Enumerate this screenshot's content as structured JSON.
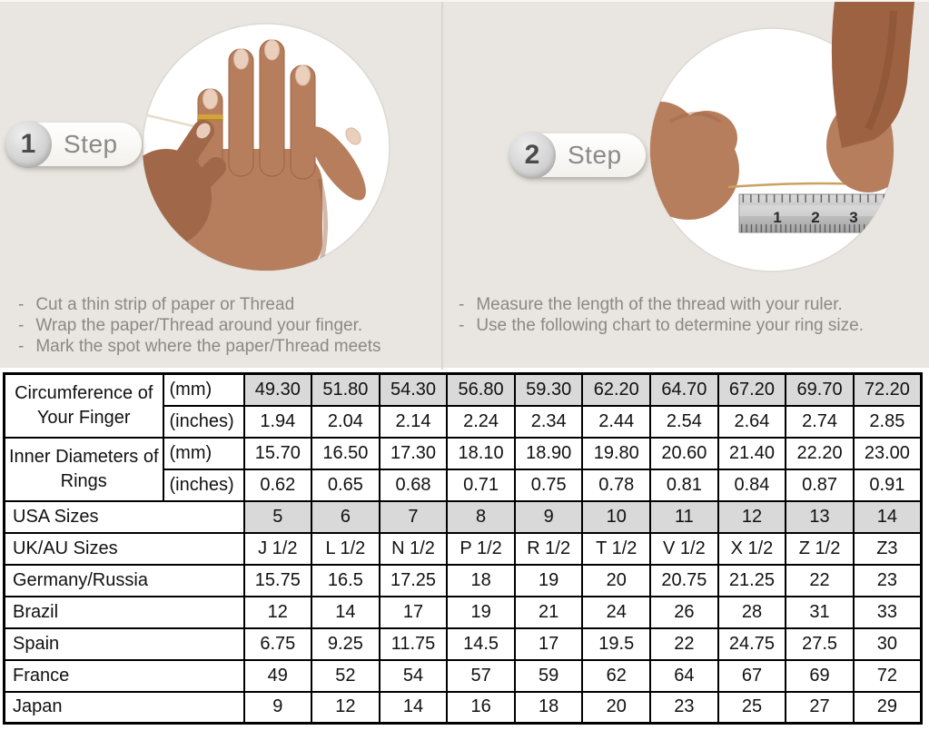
{
  "steps": [
    {
      "number": "1",
      "label": "Step",
      "instructions": [
        "Cut a thin strip of paper or Thread",
        "Wrap the paper/Thread around your finger.",
        "Mark the spot where the paper/Thread meets"
      ]
    },
    {
      "number": "2",
      "label": "Step",
      "instructions": [
        "Measure the length of the thread with your ruler.",
        "Use the following chart to determine your ring size."
      ]
    }
  ],
  "ruler": {
    "numbers": [
      "1",
      "2",
      "3"
    ]
  },
  "size_chart": {
    "measure_groups": [
      {
        "label": "Circumference of Your Finger",
        "rows": [
          {
            "unit": "(mm)",
            "shaded": true,
            "values": [
              "49.30",
              "51.80",
              "54.30",
              "56.80",
              "59.30",
              "62.20",
              "64.70",
              "67.20",
              "69.70",
              "72.20"
            ]
          },
          {
            "unit": "(inches)",
            "shaded": false,
            "values": [
              "1.94",
              "2.04",
              "2.14",
              "2.24",
              "2.34",
              "2.44",
              "2.54",
              "2.64",
              "2.74",
              "2.85"
            ]
          }
        ]
      },
      {
        "label": "Inner Diameters of Rings",
        "rows": [
          {
            "unit": "(mm)",
            "shaded": false,
            "values": [
              "15.70",
              "16.50",
              "17.30",
              "18.10",
              "18.90",
              "19.80",
              "20.60",
              "21.40",
              "22.20",
              "23.00"
            ]
          },
          {
            "unit": "(inches)",
            "shaded": false,
            "values": [
              "0.62",
              "0.65",
              "0.68",
              "0.71",
              "0.75",
              "0.78",
              "0.81",
              "0.84",
              "0.87",
              "0.91"
            ]
          }
        ]
      }
    ],
    "size_rows": [
      {
        "label": "USA Sizes",
        "shaded": true,
        "values": [
          "5",
          "6",
          "7",
          "8",
          "9",
          "10",
          "11",
          "12",
          "13",
          "14"
        ]
      },
      {
        "label": "UK/AU Sizes",
        "shaded": false,
        "values": [
          "J 1/2",
          "L 1/2",
          "N 1/2",
          "P 1/2",
          "R 1/2",
          "T 1/2",
          "V 1/2",
          "X 1/2",
          "Z 1/2",
          "Z3"
        ]
      },
      {
        "label": "Germany/Russia",
        "shaded": false,
        "values": [
          "15.75",
          "16.5",
          "17.25",
          "18",
          "19",
          "20",
          "20.75",
          "21.25",
          "22",
          "23"
        ]
      },
      {
        "label": "Brazil",
        "shaded": false,
        "values": [
          "12",
          "14",
          "17",
          "19",
          "21",
          "24",
          "26",
          "28",
          "31",
          "33"
        ]
      },
      {
        "label": "Spain",
        "shaded": false,
        "values": [
          "6.75",
          "9.25",
          "11.75",
          "14.5",
          "17",
          "19.5",
          "22",
          "24.75",
          "27.5",
          "30"
        ]
      },
      {
        "label": "France",
        "shaded": false,
        "values": [
          "49",
          "52",
          "54",
          "57",
          "59",
          "62",
          "64",
          "67",
          "69",
          "72"
        ]
      },
      {
        "label": "Japan",
        "shaded": false,
        "values": [
          "9",
          "12",
          "14",
          "16",
          "18",
          "20",
          "23",
          "25",
          "27",
          "29"
        ]
      }
    ]
  },
  "colors": {
    "background": "#e9e6e1",
    "shaded_cell": "#d9d9d9",
    "instruction_text": "#8c8984",
    "table_border": "#000000",
    "skin": "#b67e5c",
    "ring_gold": "#d2a43b"
  }
}
